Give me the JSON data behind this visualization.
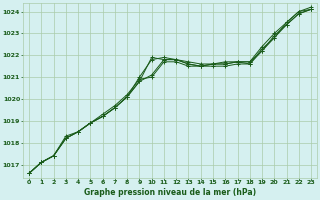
{
  "title": "Graphe pression niveau de la mer (hPa)",
  "bg_color": "#d5f0f0",
  "grid_color": "#aaccaa",
  "line_color": "#1a5c1a",
  "x_ticks": [
    0,
    1,
    2,
    3,
    4,
    5,
    6,
    7,
    8,
    9,
    10,
    11,
    12,
    13,
    14,
    15,
    16,
    17,
    18,
    19,
    20,
    21,
    22,
    23
  ],
  "ylim": [
    1016.4,
    1024.4
  ],
  "yticks": [
    1017,
    1018,
    1019,
    1020,
    1021,
    1022,
    1023,
    1024
  ],
  "series": [
    [
      1016.6,
      1017.1,
      1017.4,
      1018.2,
      1018.5,
      1018.9,
      1019.2,
      1019.6,
      1020.1,
      1020.8,
      1021.1,
      1021.8,
      1021.8,
      1021.6,
      1021.5,
      1021.5,
      1021.5,
      1021.6,
      1021.6,
      1022.2,
      1022.8,
      1023.4,
      1023.9,
      1024.1
    ],
    [
      1016.6,
      1017.1,
      1017.4,
      1018.2,
      1018.5,
      1018.9,
      1019.3,
      1019.7,
      1020.2,
      1020.9,
      1021.0,
      1021.7,
      1021.7,
      1021.5,
      1021.5,
      1021.6,
      1021.6,
      1021.7,
      1021.7,
      1022.2,
      1022.9,
      1023.4,
      1023.9,
      1024.1
    ],
    [
      1016.6,
      1017.1,
      1017.4,
      1018.2,
      1018.5,
      1018.9,
      1019.2,
      1019.6,
      1020.1,
      1021.0,
      1021.8,
      1021.9,
      1021.8,
      1021.7,
      1021.6,
      1021.6,
      1021.7,
      1021.7,
      1021.7,
      1022.4,
      1023.0,
      1023.5,
      1024.0,
      1024.2
    ],
    [
      1016.6,
      1017.1,
      1017.4,
      1018.3,
      1018.5,
      1018.9,
      1019.2,
      1019.6,
      1020.1,
      1020.8,
      1021.9,
      1021.8,
      1021.8,
      1021.6,
      1021.5,
      1021.6,
      1021.6,
      1021.7,
      1021.6,
      1022.3,
      1022.8,
      1023.5,
      1024.0,
      1024.1
    ]
  ]
}
